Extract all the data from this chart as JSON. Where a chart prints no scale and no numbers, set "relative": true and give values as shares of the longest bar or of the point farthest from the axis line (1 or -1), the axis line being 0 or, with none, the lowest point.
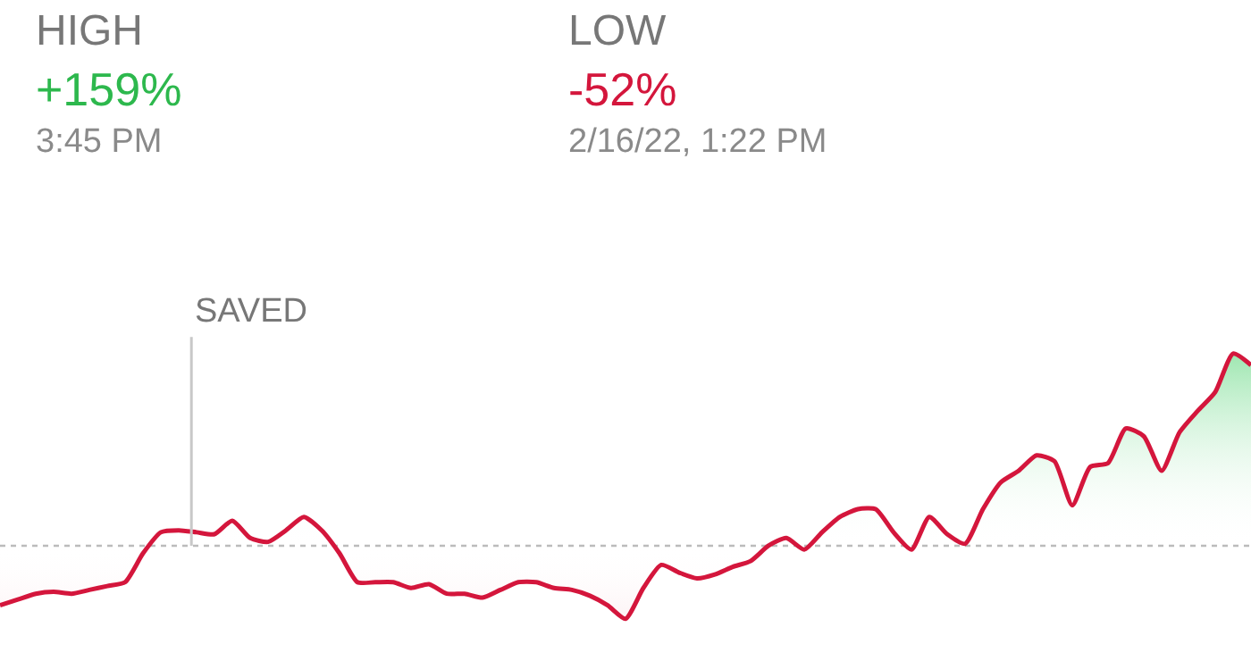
{
  "chart_data": {
    "type": "line",
    "relative": true,
    "annotations": [
      "HIGH",
      "+159%",
      "3:45 PM",
      "LOW",
      "-52%",
      "2/16/22, 1:22 PM",
      "SAVED"
    ],
    "ref_lines": [
      {
        "axis": "y",
        "value": 0,
        "color": "#bbbbbb",
        "line_style": "dotted"
      }
    ],
    "categories": [
      null,
      null,
      null,
      null,
      null,
      null,
      null,
      null,
      null,
      null,
      null,
      null,
      null,
      null,
      null,
      null,
      null,
      null,
      null,
      null,
      null,
      null,
      null,
      null,
      null,
      null,
      null,
      null,
      null,
      null,
      null,
      null,
      null,
      null,
      null,
      null,
      null,
      null,
      null,
      null,
      null,
      null,
      null,
      null,
      null,
      null,
      null,
      null,
      null,
      null,
      null,
      null,
      null,
      null,
      null,
      null,
      null,
      null,
      null,
      null,
      null,
      null,
      null,
      null,
      null,
      null,
      null,
      null,
      null,
      null,
      null
    ],
    "series": [
      {
        "color": "#d4163c",
        "values": [
          -0.31,
          -0.28,
          -0.25,
          -0.24,
          -0.25,
          -0.23,
          -0.21,
          -0.19,
          -0.04,
          0.07,
          0.08,
          0.07,
          0.06,
          0.13,
          0.04,
          0.02,
          0.08,
          0.15,
          0.08,
          -0.04,
          -0.19,
          -0.19,
          -0.19,
          -0.22,
          -0.2,
          -0.25,
          -0.25,
          -0.27,
          -0.23,
          -0.19,
          -0.19,
          -0.22,
          -0.23,
          -0.26,
          -0.31,
          -0.38,
          -0.22,
          -0.1,
          -0.14,
          -0.17,
          -0.15,
          -0.11,
          -0.08,
          0,
          0.04,
          -0.02,
          0.07,
          0.15,
          0.19,
          0.19,
          0.07,
          -0.02,
          0.15,
          0.06,
          0.01,
          0.19,
          0.33,
          0.39,
          0.47,
          0.44,
          0.21,
          0.41,
          0.43,
          0.61,
          0.57,
          0.39,
          0.59,
          0.7,
          0.8,
          1,
          0.94
        ]
      }
    ]
  }
}
